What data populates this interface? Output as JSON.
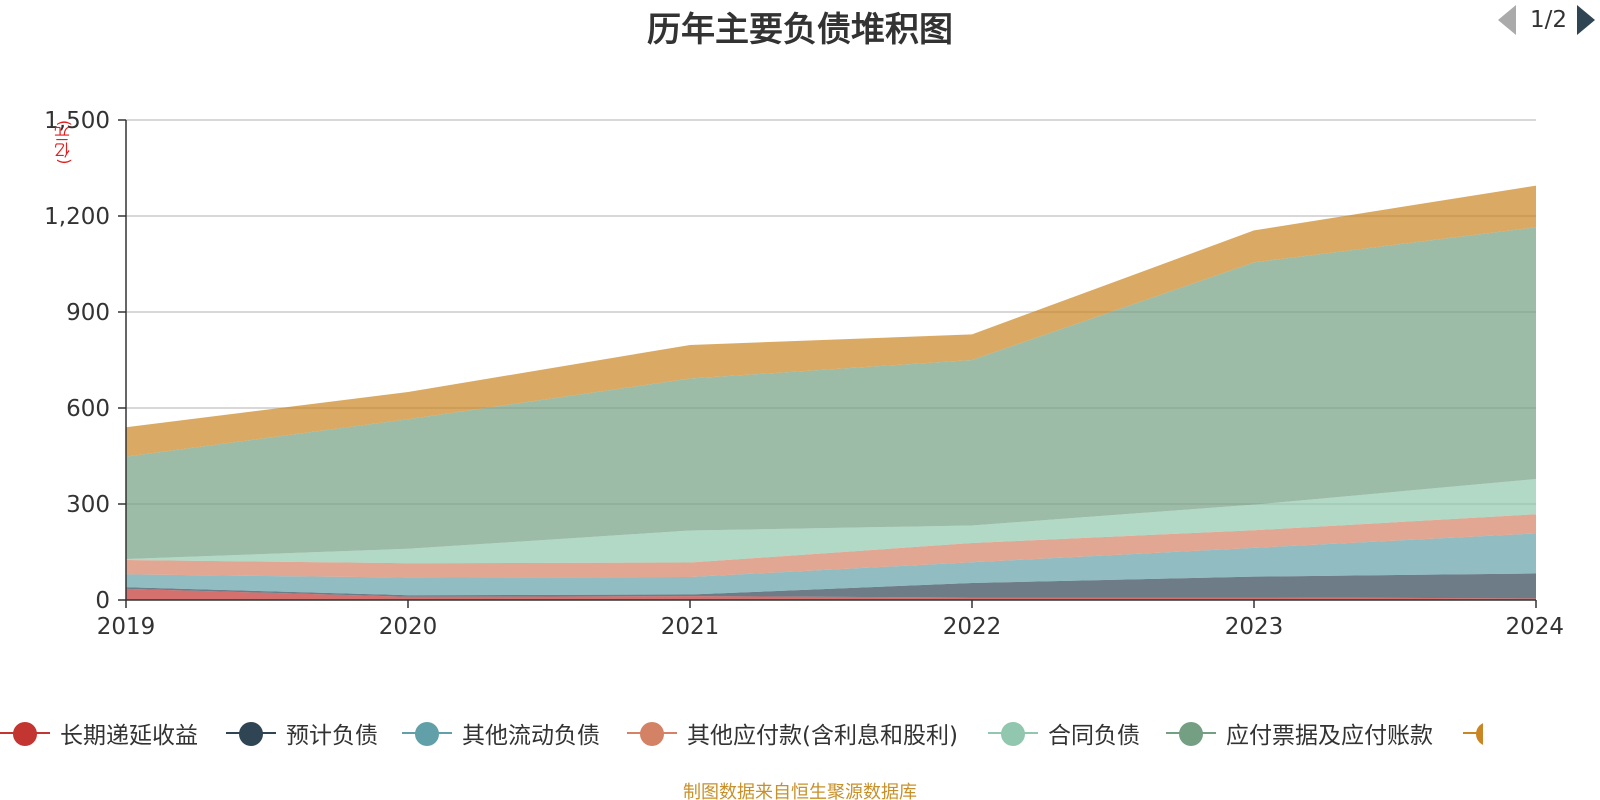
{
  "title": "历年主要负债堆积图",
  "source_note": "制图数据来自恒生聚源数据库",
  "chart_data": {
    "type": "area",
    "stacked": true,
    "x": [
      "2019",
      "2020",
      "2021",
      "2022",
      "2023",
      "2024"
    ],
    "ylim": [
      0,
      1500
    ],
    "yticks": [
      "0",
      "300",
      "600",
      "900",
      "1,200",
      "1,500"
    ],
    "ytick_values": [
      0,
      300,
      600,
      900,
      1200,
      1500
    ],
    "yunit": "(亿元)",
    "grid": true,
    "legend_position": "bottom",
    "legend_page": "1/2",
    "series": [
      {
        "name": "长期递延收益",
        "color": "#c23531",
        "values": [
          35,
          10,
          12,
          8,
          8,
          5
        ]
      },
      {
        "name": "预计负债",
        "color": "#2f4554",
        "values": [
          5,
          5,
          5,
          45,
          65,
          78
        ]
      },
      {
        "name": "其他流动负债",
        "color": "#61a0a8",
        "values": [
          40,
          55,
          55,
          65,
          90,
          125
        ]
      },
      {
        "name": "其他应付款(含利息和股利)",
        "color": "#d48265",
        "values": [
          45,
          45,
          45,
          60,
          55,
          60
        ]
      },
      {
        "name": "合同负债",
        "color": "#91c7ae",
        "values": [
          3,
          45,
          100,
          55,
          80,
          110
        ]
      },
      {
        "name": "应付票据及应付账款",
        "color": "#749f83",
        "values": [
          320,
          405,
          475,
          517,
          757,
          787
        ]
      },
      {
        "name": "",
        "color": "#ca8622",
        "values": [
          92,
          85,
          105,
          80,
          100,
          130
        ]
      }
    ]
  }
}
